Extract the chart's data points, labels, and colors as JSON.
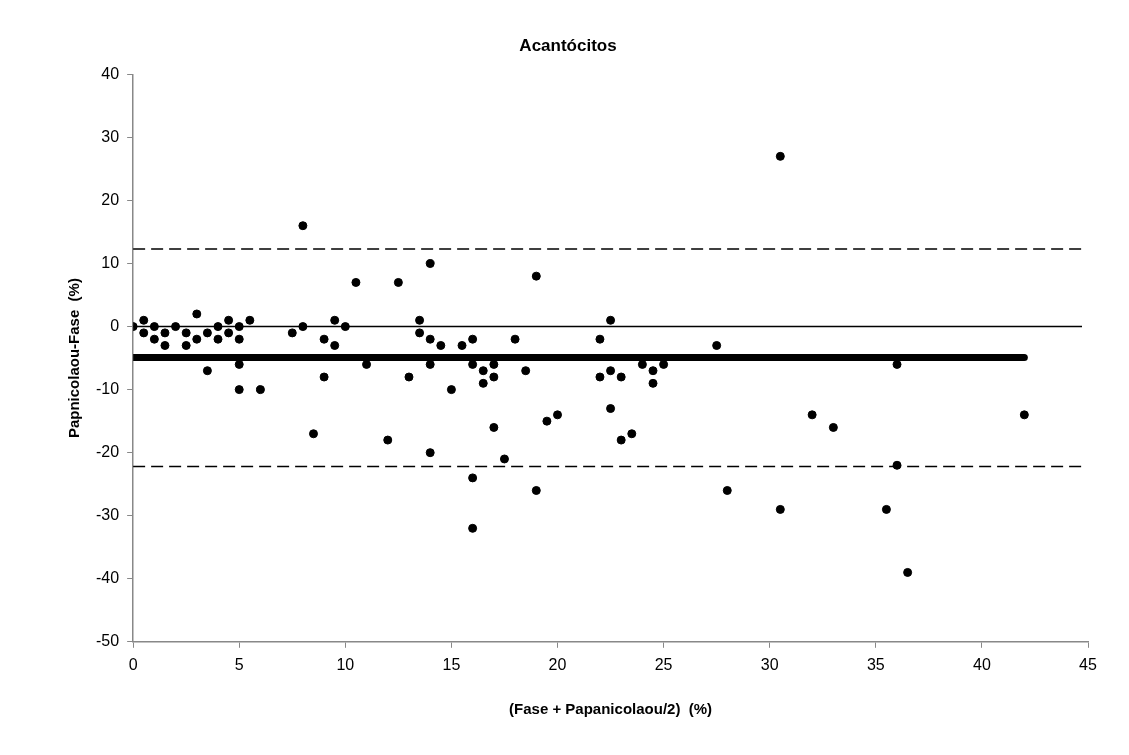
{
  "chart_data": {
    "type": "scatter",
    "title": "Acantócitos",
    "xlabel": "(Fase + Papanicolaou/2)  (%)",
    "ylabel": "Papnicolaou-Fase  (%)",
    "xlim": [
      0,
      45
    ],
    "xticks": [
      0,
      5,
      10,
      15,
      20,
      25,
      30,
      35,
      40,
      45
    ],
    "ylim": [
      -50,
      40
    ],
    "yticks": [
      -50,
      -40,
      -30,
      -20,
      -10,
      0,
      10,
      20,
      30,
      40
    ],
    "grid": false,
    "legend": false,
    "marker": "circle",
    "series": [
      {
        "type": "scatter",
        "color": "#000000",
        "x": [
          0,
          0.5,
          0.5,
          1,
          1,
          1.5,
          1.5,
          2,
          2.5,
          2.5,
          3,
          3,
          3.5,
          3.5,
          4,
          4,
          4.5,
          4.5,
          5,
          5,
          5,
          5,
          5.5,
          6,
          7.5,
          8,
          8,
          8.5,
          9,
          9,
          9.5,
          9.5,
          10,
          10.5,
          11,
          12,
          12.5,
          13,
          13.5,
          13.5,
          14,
          14,
          14,
          14,
          14.5,
          15,
          15.5,
          16,
          16,
          16,
          16,
          16.5,
          16.5,
          17,
          17,
          17,
          17.5,
          18,
          18.5,
          19,
          19,
          19.5,
          20,
          22,
          22,
          22.5,
          22.5,
          22.5,
          23,
          23,
          23.5,
          24,
          24.5,
          24.5,
          25,
          27.5,
          28,
          30.5,
          30.5,
          32,
          33,
          35.5,
          36,
          36,
          36.5,
          42
        ],
        "values": [
          0,
          -1,
          1,
          0,
          -2,
          -1,
          -3,
          0,
          -1,
          -3,
          2,
          -2,
          -1,
          -7,
          0,
          -2,
          1,
          -1,
          0,
          -2,
          -6,
          -10,
          1,
          -10,
          -1,
          16,
          0,
          -17,
          -2,
          -8,
          1,
          -3,
          0,
          7,
          -6,
          -18,
          7,
          -8,
          1,
          -1,
          10,
          -2,
          -6,
          -20,
          -3,
          -10,
          -3,
          -2,
          -6,
          -24,
          -32,
          -7,
          -9,
          -6,
          -8,
          -16,
          -21,
          -2,
          -7,
          8,
          -26,
          -15,
          -14,
          -2,
          -8,
          1,
          -7,
          -13,
          -8,
          -18,
          -17,
          -6,
          -7,
          -9,
          -6,
          -3,
          -26,
          27,
          -29,
          -14,
          -16,
          -29,
          -6,
          -22,
          -39,
          -14
        ]
      },
      {
        "type": "line",
        "color": "#000000",
        "marker": "none",
        "x": [
          0,
          42
        ],
        "values": [
          -4.9,
          -4.9
        ]
      }
    ],
    "ref_lines": [
      {
        "axis": "y",
        "value": 0,
        "color": "#000000",
        "line_style": "solid"
      },
      {
        "axis": "y",
        "value": 12.3,
        "color": "#000000",
        "line_style": "dashed"
      },
      {
        "axis": "y",
        "value": -22.2,
        "color": "#000000",
        "line_style": "dashed"
      }
    ]
  }
}
